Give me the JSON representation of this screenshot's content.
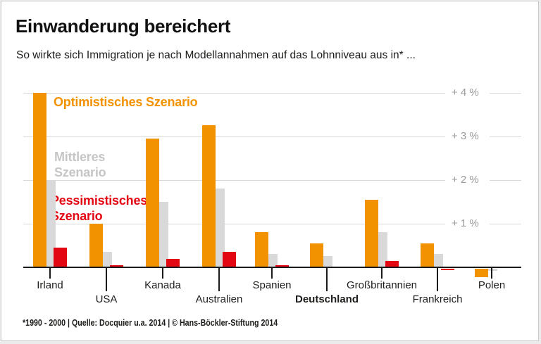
{
  "card": {
    "title": "Einwanderung bereichert",
    "subtitle": "So wirkte sich Immigration je nach Modellannahmen auf das Lohnniveau aus in* ...",
    "footer": "*1990 - 2000 | Quelle: Docquier u.a. 2014 | © Hans-Böckler-Stiftung 2014"
  },
  "legend": [
    {
      "label": "Optimistisches Szenario",
      "color": "#F39200"
    },
    {
      "label": "Mittleres Szenario",
      "color": "#C6C6C6"
    },
    {
      "label": "Pessimistisches Szenario",
      "color": "#E30613"
    }
  ],
  "colors": {
    "optimistic": "#F39200",
    "middle": "#D9D9D9",
    "pessimistic": "#E30613",
    "axis": "#1A1A1A",
    "gridline": "#D9D9D9",
    "y_label": "#9B9B9B"
  },
  "chart_data": {
    "type": "bar",
    "title": "Einwanderung bereichert",
    "subtitle": "So wirkte sich Immigration je nach Modellannahmen auf das Lohnniveau aus in* ...",
    "unit": "%",
    "categories": [
      "Irland",
      "USA",
      "Kanada",
      "Australien",
      "Spanien",
      "Deutschland",
      "Großbritannien",
      "Frankreich",
      "Polen"
    ],
    "emphasized_category": "Deutschland",
    "series": [
      {
        "name": "Optimistisches Szenario",
        "color": "#F39200",
        "values": [
          4.0,
          1.0,
          2.95,
          3.25,
          0.8,
          0.55,
          1.55,
          0.55,
          -0.2
        ]
      },
      {
        "name": "Mittleres Szenario",
        "color": "#D9D9D9",
        "values": [
          2.0,
          0.35,
          1.5,
          1.8,
          0.3,
          0.25,
          0.8,
          0.3,
          -0.05
        ]
      },
      {
        "name": "Pessimistisches Szenario",
        "color": "#E30613",
        "values": [
          0.45,
          0.05,
          0.2,
          0.35,
          0.05,
          0.02,
          0.15,
          -0.03,
          0
        ]
      }
    ],
    "y_ticks": [
      "+ 1 %",
      "+ 2 %",
      "+ 3 %",
      "+ 4 %"
    ],
    "ylim": [
      -0.3,
      4.3
    ],
    "baseline": 0,
    "grid": true,
    "legend_position": "inside-left",
    "source_note": "*1990 - 2000 | Quelle: Docquier u.a. 2014 | © Hans-Böckler-Stiftung 2014"
  }
}
